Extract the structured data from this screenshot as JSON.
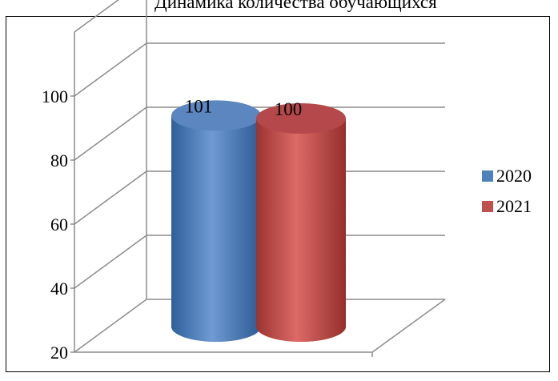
{
  "chart_data": {
    "type": "bar",
    "title": "Динамика количества обучающихся",
    "xlabel": "",
    "ylabel": "",
    "categories": [
      ""
    ],
    "series": [
      {
        "name": "2020",
        "values": [
          101
        ],
        "color": "#4F81BD"
      },
      {
        "name": "2021",
        "values": [
          100
        ],
        "color": "#C0504D"
      }
    ],
    "data_labels": [
      "101",
      "100"
    ],
    "ylim": [
      20,
      100
    ],
    "yticks": [
      "20",
      "40",
      "60",
      "80",
      "100"
    ],
    "grid": true,
    "legend": "right",
    "bar_shape": "cylinder-3d"
  }
}
